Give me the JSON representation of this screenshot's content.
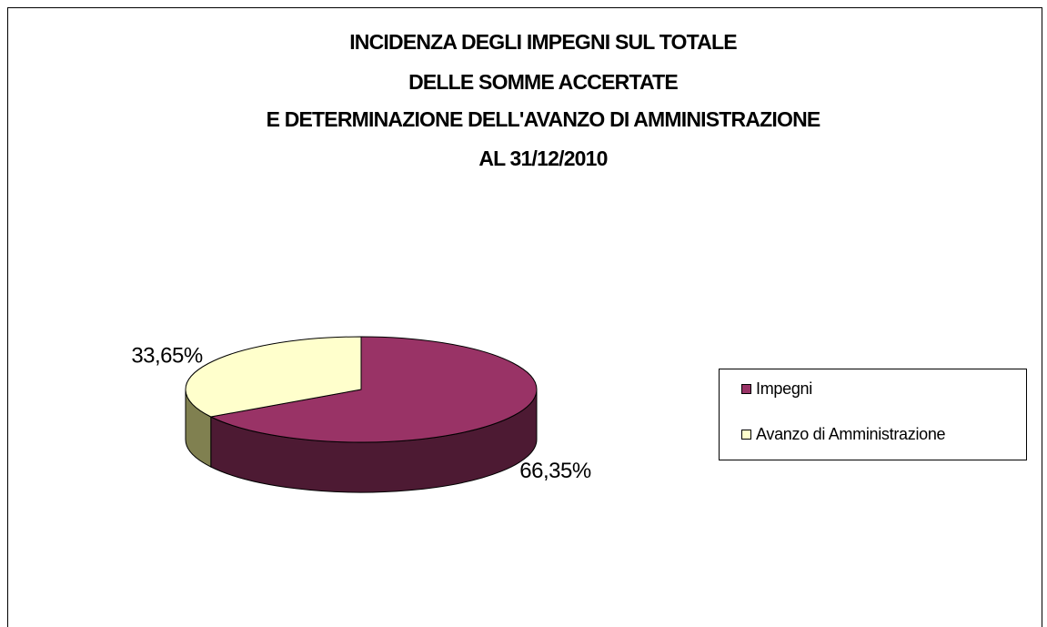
{
  "chart_data": {
    "type": "pie3d",
    "title": [
      "INCIDENZA DEGLI IMPEGNI SUL TOTALE",
      "DELLE SOMME ACCERTATE",
      "E DETERMINAZIONE DELL'AVANZO DI AMMINISTRAZIONE",
      "AL 31/12/2010"
    ],
    "categories": [
      "Impegni",
      "Avanzo di Amministrazione"
    ],
    "values": [
      66.35,
      33.65
    ],
    "value_labels": [
      "66,35%",
      "33,65%"
    ],
    "colors": [
      "#993366",
      "#FFFFCC"
    ],
    "side_colors": [
      "#4d1a33",
      "#808050"
    ],
    "legend": "right"
  }
}
